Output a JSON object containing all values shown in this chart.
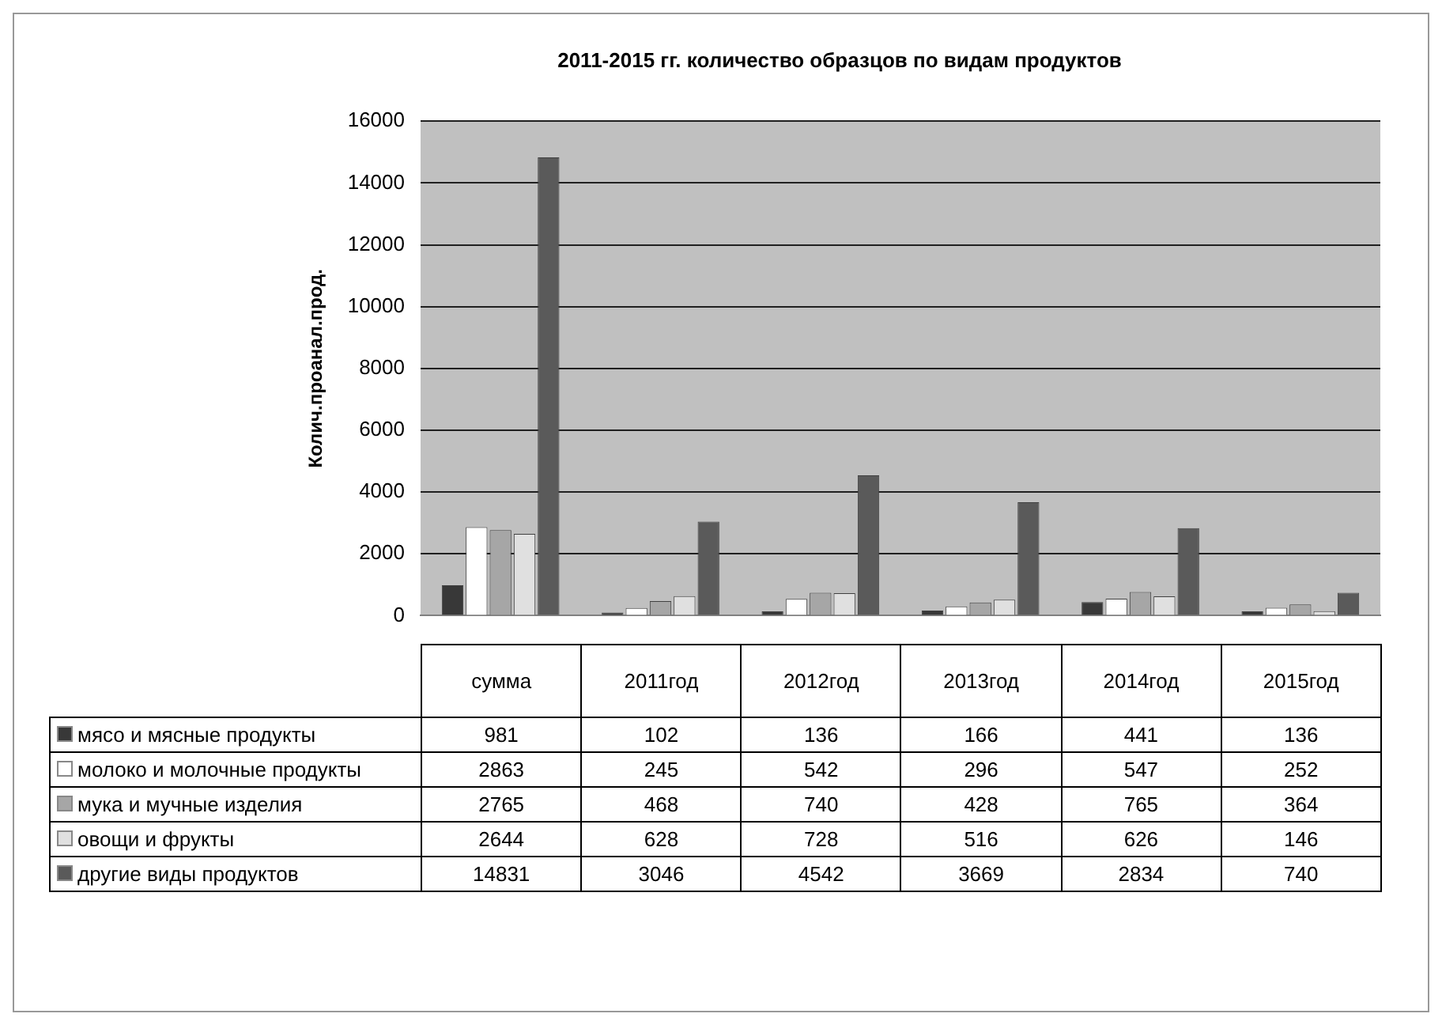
{
  "chart_data": {
    "type": "bar",
    "title": "2011-2015 гг. количество образцов по видам продуктов",
    "ylabel": "Колич.проанал.прод.",
    "categories": [
      "сумма",
      "2011год",
      "2012год",
      "2013год",
      "2014год",
      "2015год"
    ],
    "series": [
      {
        "name": "мясо и мясные продукты",
        "color": "#383838",
        "values": [
          981,
          102,
          136,
          166,
          441,
          136
        ]
      },
      {
        "name": "молоко и молочные продукты",
        "color": "#ffffff",
        "values": [
          2863,
          245,
          542,
          296,
          547,
          252
        ]
      },
      {
        "name": "мука и мучные изделия",
        "color": "#a6a6a6",
        "values": [
          2765,
          468,
          740,
          428,
          765,
          364
        ]
      },
      {
        "name": "овощи и фрукты",
        "color": "#e0e0e0",
        "values": [
          2644,
          628,
          728,
          516,
          626,
          146
        ]
      },
      {
        "name": "другие виды продуктов",
        "color": "#5a5a5a",
        "values": [
          14831,
          3046,
          4542,
          3669,
          2834,
          740
        ]
      }
    ],
    "ylim": [
      0,
      16000
    ],
    "yticks": [
      0,
      2000,
      4000,
      6000,
      8000,
      10000,
      12000,
      14000,
      16000
    ],
    "grid": "y",
    "legend": "bottom",
    "data_labels": true
  }
}
